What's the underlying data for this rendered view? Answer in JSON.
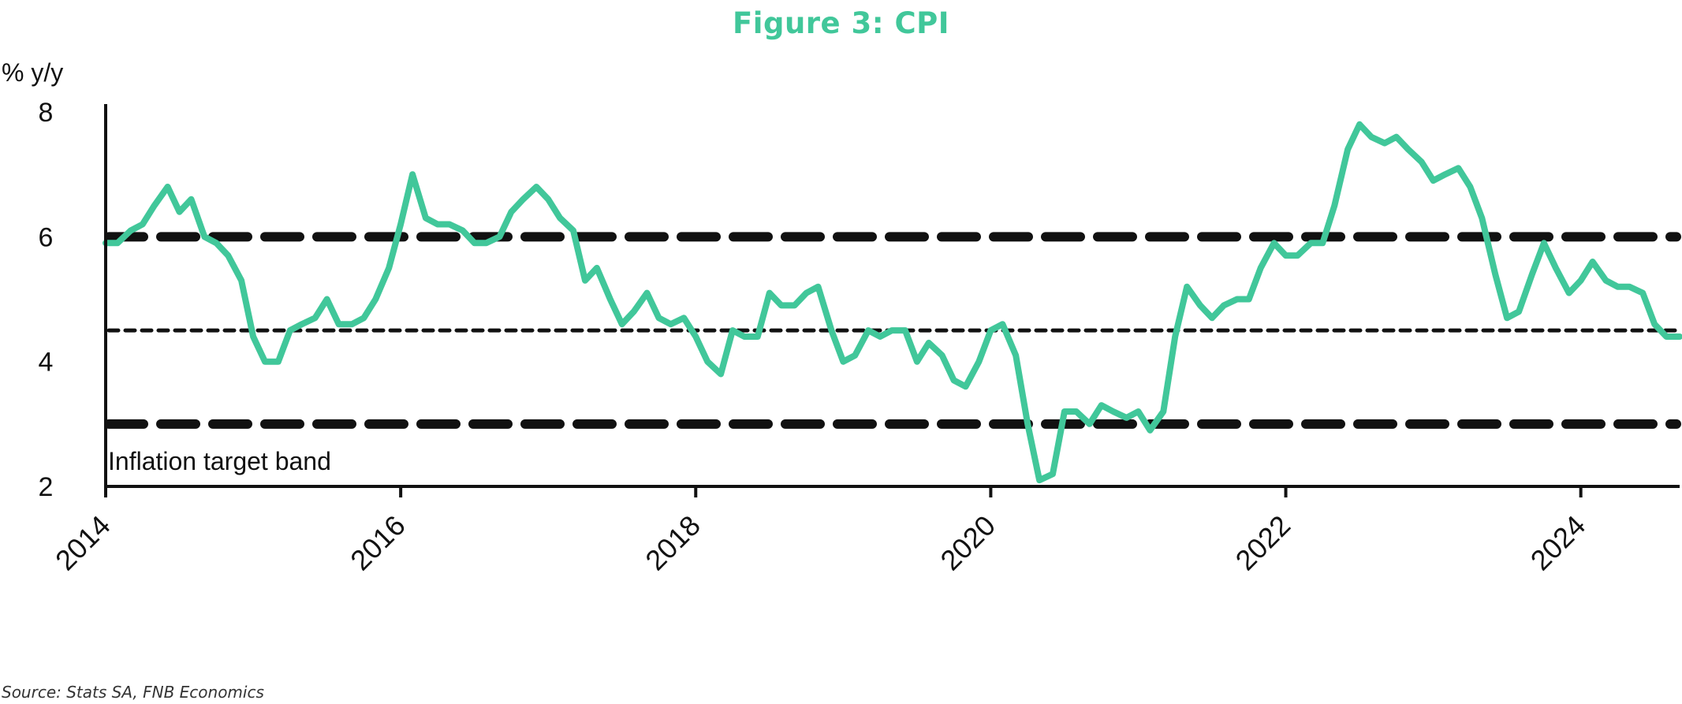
{
  "title": "Figure 3: CPI",
  "source": "Source: Stats SA, FNB Economics",
  "colors": {
    "series": "#41c79a",
    "band": "#111111",
    "title": "#41c79a"
  },
  "chart_data": {
    "type": "line",
    "title": "Figure 3: CPI",
    "ylabel": "% y/y",
    "xlabel": "",
    "ylim": [
      2,
      8
    ],
    "xlim": [
      2014.0,
      2024.67
    ],
    "yticks": [
      "2",
      "4",
      "6",
      "8"
    ],
    "xticks": [
      "2014",
      "2016",
      "2018",
      "2020",
      "2022",
      "2024"
    ],
    "grid": false,
    "annotation": "Inflation target band",
    "reference_lines": [
      {
        "name": "upper target",
        "y": 6.0,
        "style": "long-dash"
      },
      {
        "name": "midpoint",
        "y": 4.5,
        "style": "short-dash"
      },
      {
        "name": "lower target",
        "y": 3.0,
        "style": "long-dash"
      }
    ],
    "series": [
      {
        "x": [
          2014.0,
          2014.08,
          2014.17,
          2014.25,
          2014.33,
          2014.42,
          2014.5,
          2014.58,
          2014.67,
          2014.75,
          2014.83,
          2014.92,
          2015.0,
          2015.08,
          2015.17,
          2015.25,
          2015.33,
          2015.42,
          2015.5,
          2015.58,
          2015.67,
          2015.75,
          2015.83,
          2015.92,
          2016.0,
          2016.08,
          2016.17,
          2016.25,
          2016.33,
          2016.42,
          2016.5,
          2016.58,
          2016.67,
          2016.75,
          2016.83,
          2016.92,
          2017.0,
          2017.08,
          2017.17,
          2017.25,
          2017.33,
          2017.42,
          2017.5,
          2017.58,
          2017.67,
          2017.75,
          2017.83,
          2017.92,
          2018.0,
          2018.08,
          2018.17,
          2018.25,
          2018.33,
          2018.42,
          2018.5,
          2018.58,
          2018.67,
          2018.75,
          2018.83,
          2018.92,
          2019.0,
          2019.08,
          2019.17,
          2019.25,
          2019.33,
          2019.42,
          2019.5,
          2019.58,
          2019.67,
          2019.75,
          2019.83,
          2019.92,
          2020.0,
          2020.08,
          2020.17,
          2020.25,
          2020.33,
          2020.42,
          2020.5,
          2020.58,
          2020.67,
          2020.75,
          2020.83,
          2020.92,
          2021.0,
          2021.08,
          2021.17,
          2021.25,
          2021.33,
          2021.42,
          2021.5,
          2021.58,
          2021.67,
          2021.75,
          2021.83,
          2021.92,
          2022.0,
          2022.08,
          2022.17,
          2022.25,
          2022.33,
          2022.42,
          2022.5,
          2022.58,
          2022.67,
          2022.75,
          2022.83,
          2022.92,
          2023.0,
          2023.08,
          2023.17,
          2023.25,
          2023.33,
          2023.42,
          2023.5,
          2023.58,
          2023.67,
          2023.75,
          2023.83,
          2023.92,
          2024.0,
          2024.08,
          2024.17,
          2024.25,
          2024.33,
          2024.42,
          2024.5,
          2024.58,
          2024.67
        ],
        "values": [
          5.9,
          5.9,
          6.1,
          6.2,
          6.5,
          6.8,
          6.4,
          6.6,
          6.0,
          5.9,
          5.7,
          5.3,
          4.4,
          4.0,
          4.0,
          4.5,
          4.6,
          4.7,
          5.0,
          4.6,
          4.6,
          4.7,
          5.0,
          5.5,
          6.2,
          7.0,
          6.3,
          6.2,
          6.2,
          6.1,
          5.9,
          5.9,
          6.0,
          6.4,
          6.6,
          6.8,
          6.6,
          6.3,
          6.1,
          5.3,
          5.5,
          5.0,
          4.6,
          4.8,
          5.1,
          4.7,
          4.6,
          4.7,
          4.4,
          4.0,
          3.8,
          4.5,
          4.4,
          4.4,
          5.1,
          4.9,
          4.9,
          5.1,
          5.2,
          4.5,
          4.0,
          4.1,
          4.5,
          4.4,
          4.5,
          4.5,
          4.0,
          4.3,
          4.1,
          3.7,
          3.6,
          4.0,
          4.5,
          4.6,
          4.1,
          3.0,
          2.1,
          2.2,
          3.2,
          3.2,
          3.0,
          3.3,
          3.2,
          3.1,
          3.2,
          2.9,
          3.2,
          4.4,
          5.2,
          4.9,
          4.7,
          4.9,
          5.0,
          5.0,
          5.5,
          5.9,
          5.7,
          5.7,
          5.9,
          5.9,
          6.5,
          7.4,
          7.8,
          7.6,
          7.5,
          7.6,
          7.4,
          7.2,
          6.9,
          7.0,
          7.1,
          6.8,
          6.3,
          5.4,
          4.7,
          4.8,
          5.4,
          5.9,
          5.5,
          5.1,
          5.3,
          5.6,
          5.3,
          5.2,
          5.2,
          5.1,
          4.6,
          4.4,
          4.4
        ]
      }
    ]
  }
}
